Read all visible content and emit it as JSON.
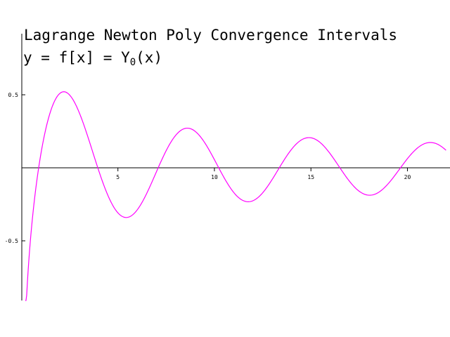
{
  "chart_data": {
    "type": "line",
    "title": "Lagrange Newton Poly  Convergence Intervals",
    "subtitle": {
      "prefix": "y = f[x] = Y",
      "sub": "0",
      "suffix": "(x)"
    },
    "xlabel": "",
    "ylabel": "",
    "xlim": [
      0.02,
      22.0
    ],
    "ylim": [
      -0.8,
      0.7
    ],
    "x_ticks": [
      5,
      10,
      15,
      20
    ],
    "y_ticks": [
      0.5,
      -0.5
    ],
    "x_tick_labels": [
      "5",
      "10",
      "15",
      "20"
    ],
    "y_tick_labels": [
      "0.5",
      "-0.5"
    ],
    "grid": false,
    "series": [
      {
        "function": "bessel_y0",
        "x_range": [
          0.2,
          22.0
        ],
        "color": "#ff00ff"
      }
    ]
  }
}
